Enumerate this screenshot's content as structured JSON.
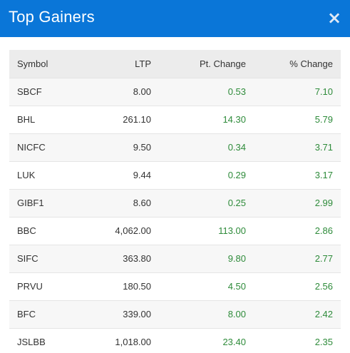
{
  "header": {
    "title": "Top Gainers",
    "close_glyph": "×"
  },
  "table": {
    "columns": [
      "Symbol",
      "LTP",
      "Pt. Change",
      "% Change"
    ],
    "rows": [
      {
        "symbol": "SBCF",
        "ltp": "8.00",
        "pt_change": "0.53",
        "pct_change": "7.10"
      },
      {
        "symbol": "BHL",
        "ltp": "261.10",
        "pt_change": "14.30",
        "pct_change": "5.79"
      },
      {
        "symbol": "NICFC",
        "ltp": "9.50",
        "pt_change": "0.34",
        "pct_change": "3.71"
      },
      {
        "symbol": "LUK",
        "ltp": "9.44",
        "pt_change": "0.29",
        "pct_change": "3.17"
      },
      {
        "symbol": "GIBF1",
        "ltp": "8.60",
        "pt_change": "0.25",
        "pct_change": "2.99"
      },
      {
        "symbol": "BBC",
        "ltp": "4,062.00",
        "pt_change": "113.00",
        "pct_change": "2.86"
      },
      {
        "symbol": "SIFC",
        "ltp": "363.80",
        "pt_change": "9.80",
        "pct_change": "2.77"
      },
      {
        "symbol": "PRVU",
        "ltp": "180.50",
        "pt_change": "4.50",
        "pct_change": "2.56"
      },
      {
        "symbol": "BFC",
        "ltp": "339.00",
        "pt_change": "8.00",
        "pct_change": "2.42"
      },
      {
        "symbol": "JSLBB",
        "ltp": "1,018.00",
        "pt_change": "23.40",
        "pct_change": "2.35"
      }
    ]
  },
  "colors": {
    "header_bg": "#0a76d8",
    "gain_text": "#2e8b3a",
    "table_header_bg": "#ececec"
  },
  "icons": {
    "close": "close-icon"
  }
}
